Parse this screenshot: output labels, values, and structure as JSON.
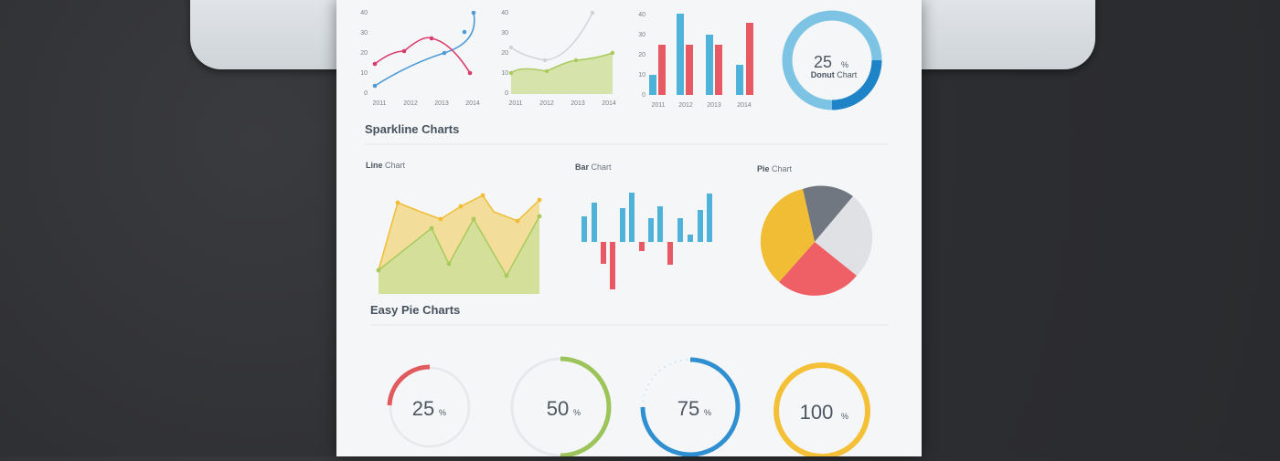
{
  "sections": {
    "sparkline": "Sparkline Charts",
    "easy_pie": "Easy Pie Charts"
  },
  "top_charts": {
    "years": [
      "2011",
      "2012",
      "2013",
      "2014"
    ],
    "y_ticks_line": [
      "40",
      "30",
      "20",
      "10",
      "0"
    ],
    "y_ticks_area": [
      "40",
      "30",
      "20",
      "10",
      "0"
    ],
    "y_ticks_bar": [
      "40",
      "30",
      "20",
      "10",
      "0"
    ]
  },
  "donut": {
    "value": "25",
    "unit": "%",
    "label_bold": "Donut",
    "label_rest": " Chart",
    "color_main": "#7dc4e4",
    "color_dark": "#1f84c7"
  },
  "sparkline_labels": {
    "line_bold": "Line",
    "line_rest": " Chart",
    "bar_bold": "Bar",
    "bar_rest": " Chart",
    "pie_bold": "Pie",
    "pie_rest": " Chart"
  },
  "easy_pies": [
    {
      "value": "25",
      "unit": "%",
      "fraction": 0.25,
      "color": "#e05a5e"
    },
    {
      "value": "50",
      "unit": "%",
      "fraction": 0.5,
      "color": "#9cc45a"
    },
    {
      "value": "75",
      "unit": "%",
      "fraction": 0.75,
      "color": "#2f8fd0"
    },
    {
      "value": "100",
      "unit": "%",
      "fraction": 1.0,
      "color": "#f3c038"
    }
  ],
  "colors": {
    "blue": "#4fb3d9",
    "red": "#e85a63",
    "pink": "#d93c6a",
    "green_fill": "#cfe09a",
    "yellow_fill": "#f1d98a",
    "yellow": "#f1bd35",
    "grey": "#707780"
  }
}
